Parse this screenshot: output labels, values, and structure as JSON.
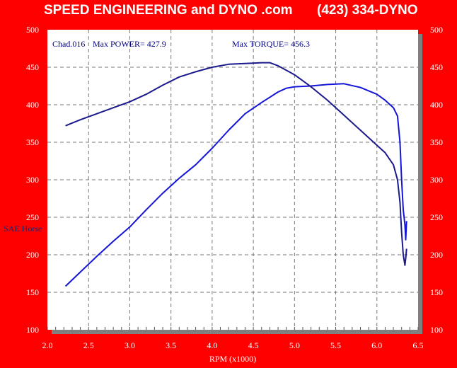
{
  "header": {
    "left": "SPEED ENGINEERING and DYNO .com",
    "right": "(423) 334-DYNO"
  },
  "colors": {
    "background": "#ff0000",
    "plot_bg": "#ffffff",
    "power_curve": "#1515d8",
    "torque_curve": "#1a1a8c",
    "frame_shadow": "#808080"
  },
  "chart_data": {
    "type": "line",
    "xlabel": "RPM (x1000)",
    "ylabel": "SAE Horse",
    "xlim": [
      2.0,
      6.5
    ],
    "ylim": [
      100,
      500
    ],
    "x_ticks": [
      "2.0",
      "2.5",
      "3.0",
      "3.5",
      "4.0",
      "4.5",
      "5.0",
      "5.5",
      "6.0",
      "6.5"
    ],
    "y_ticks": [
      "100",
      "150",
      "200",
      "250",
      "300",
      "350",
      "400",
      "450",
      "500"
    ],
    "grid": true,
    "annotations": {
      "run": "Chad.016",
      "max_power": "Max POWER= 427.9",
      "max_torque": "Max TORQUE= 456.3"
    },
    "series": [
      {
        "key": "power",
        "x": [
          2.22,
          2.4,
          2.6,
          2.8,
          3.0,
          3.2,
          3.4,
          3.6,
          3.8,
          4.0,
          4.2,
          4.4,
          4.6,
          4.8,
          4.9,
          5.0,
          5.2,
          5.4,
          5.6,
          5.8,
          6.0,
          6.1,
          6.2,
          6.25,
          6.28,
          6.3,
          6.32,
          6.34,
          6.35,
          6.36
        ],
        "y": [
          158,
          177,
          198,
          218,
          237,
          260,
          282,
          302,
          320,
          342,
          366,
          388,
          403,
          417,
          422,
          424,
          425,
          427,
          428,
          423,
          414,
          406,
          396,
          385,
          350,
          300,
          260,
          240,
          220,
          245
        ]
      },
      {
        "key": "torque",
        "x": [
          2.22,
          2.4,
          2.6,
          2.8,
          3.0,
          3.2,
          3.4,
          3.6,
          3.8,
          4.0,
          4.2,
          4.4,
          4.6,
          4.7,
          4.8,
          5.0,
          5.2,
          5.4,
          5.6,
          5.8,
          6.0,
          6.1,
          6.2,
          6.25,
          6.28,
          6.3,
          6.32,
          6.34,
          6.35,
          6.36
        ],
        "y": [
          372,
          380,
          388,
          396,
          404,
          414,
          426,
          437,
          444,
          450,
          454,
          455,
          456,
          456,
          452,
          440,
          424,
          406,
          386,
          366,
          346,
          336,
          320,
          300,
          270,
          230,
          200,
          186,
          195,
          208
        ]
      }
    ]
  }
}
